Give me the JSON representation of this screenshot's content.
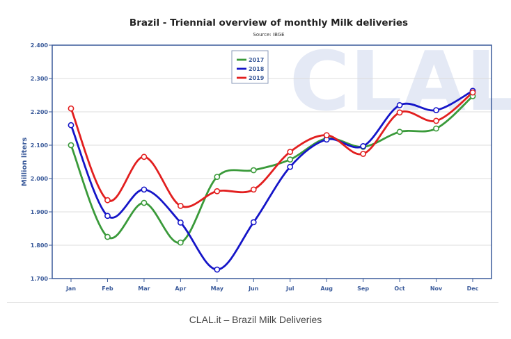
{
  "chart_data": {
    "type": "line",
    "title": "Brazil - Triennial overview of monthly Milk deliveries",
    "subtitle": "Source: IBGE",
    "ylabel": "Million liters",
    "xlabel": "",
    "categories": [
      "Jan",
      "Feb",
      "Mar",
      "Apr",
      "May",
      "Jun",
      "Jul",
      "Aug",
      "Sep",
      "Oct",
      "Nov",
      "Dec"
    ],
    "ylim": [
      1700,
      2400
    ],
    "yticks": [
      1700,
      1800,
      1900,
      2000,
      2100,
      2200,
      2300,
      2400
    ],
    "ytick_labels": [
      "1.700",
      "1.800",
      "1.900",
      "2.000",
      "2.100",
      "2.200",
      "2.300",
      "2.400"
    ],
    "grid": true,
    "legend_position": "top-center",
    "series": [
      {
        "name": "2017",
        "color": "#3a9a3a",
        "values": [
          2100,
          1825,
          1927,
          1808,
          2005,
          2025,
          2057,
          2120,
          2095,
          2140,
          2150,
          2247
        ]
      },
      {
        "name": "2018",
        "color": "#1515c8",
        "values": [
          2160,
          1888,
          1967,
          1868,
          1727,
          1869,
          2035,
          2117,
          2097,
          2220,
          2205,
          2263
        ]
      },
      {
        "name": "2019",
        "color": "#e21f1f",
        "values": [
          2210,
          1935,
          2065,
          1918,
          1962,
          1967,
          2080,
          2130,
          2074,
          2198,
          2173,
          2258
        ]
      }
    ]
  },
  "watermark": "CLAL",
  "caption": "CLAL.it – Brazil Milk Deliveries"
}
